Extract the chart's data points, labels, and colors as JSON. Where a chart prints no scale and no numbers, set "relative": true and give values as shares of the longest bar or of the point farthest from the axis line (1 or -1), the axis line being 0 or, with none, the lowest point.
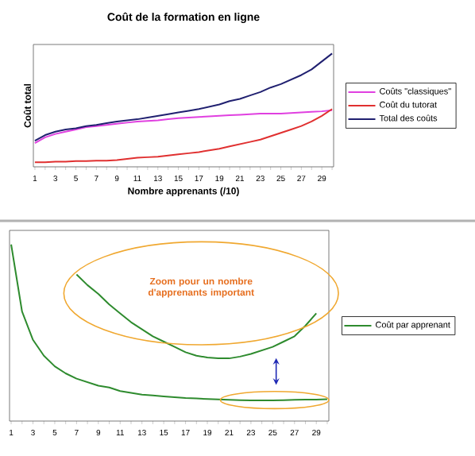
{
  "chart_data": [
    {
      "type": "line",
      "title": "Coût de la formation en ligne",
      "xlabel": "Nombre apprenants (/10)",
      "ylabel": "Coût total",
      "relative": true,
      "tick_labels": "x",
      "legend": "right",
      "grid": false,
      "categories": [
        "1",
        null,
        "3",
        null,
        "5",
        null,
        "7",
        null,
        "9",
        null,
        "11",
        null,
        "13",
        null,
        "15",
        null,
        "17",
        null,
        "19",
        null,
        "21",
        null,
        "23",
        null,
        "25",
        null,
        "27",
        null,
        "29",
        null
      ],
      "series": [
        {
          "name": "Coûts \"classiques\"",
          "color": "#e040e0",
          "values": [
            0.21,
            0.26,
            0.29,
            0.31,
            0.33,
            0.35,
            0.36,
            0.37,
            0.38,
            0.39,
            0.4,
            0.405,
            0.41,
            0.42,
            0.43,
            0.435,
            0.44,
            0.445,
            0.45,
            0.455,
            0.46,
            0.465,
            0.47,
            0.47,
            0.47,
            0.475,
            0.48,
            0.485,
            0.49,
            0.5
          ]
        },
        {
          "name": "Coût du tutorat",
          "color": "#e03030",
          "values": [
            0.04,
            0.04,
            0.045,
            0.045,
            0.05,
            0.05,
            0.055,
            0.055,
            0.06,
            0.07,
            0.08,
            0.085,
            0.09,
            0.1,
            0.11,
            0.12,
            0.13,
            0.145,
            0.16,
            0.18,
            0.2,
            0.22,
            0.24,
            0.27,
            0.3,
            0.33,
            0.36,
            0.4,
            0.45,
            0.51
          ]
        },
        {
          "name": "Total des coûts",
          "color": "#202070",
          "values": [
            0.23,
            0.28,
            0.31,
            0.33,
            0.34,
            0.36,
            0.37,
            0.385,
            0.4,
            0.41,
            0.42,
            0.435,
            0.45,
            0.465,
            0.48,
            0.495,
            0.51,
            0.53,
            0.55,
            0.58,
            0.6,
            0.63,
            0.66,
            0.7,
            0.73,
            0.77,
            0.81,
            0.86,
            0.93,
            1.0
          ]
        }
      ]
    },
    {
      "type": "line",
      "relative": true,
      "tick_labels": "x",
      "legend": "right",
      "grid": false,
      "categories": [
        "1",
        null,
        "3",
        null,
        "5",
        null,
        "7",
        null,
        "9",
        null,
        "11",
        null,
        "13",
        null,
        "15",
        null,
        "17",
        null,
        "19",
        null,
        "21",
        null,
        "23",
        null,
        "25",
        null,
        "27",
        null,
        "29",
        null
      ],
      "annotations": [
        "Zoom pour un nombre d'apprenants important"
      ],
      "series": [
        {
          "name": "Coût par apprenant",
          "color": "#2e8b2e",
          "values": [
            1.0,
            0.62,
            0.46,
            0.37,
            0.31,
            0.27,
            0.24,
            0.22,
            0.2,
            0.19,
            0.17,
            0.16,
            0.15,
            0.145,
            0.14,
            0.135,
            0.13,
            0.128,
            0.125,
            0.123,
            0.12,
            0.118,
            0.117,
            0.117,
            0.117,
            0.118,
            0.12,
            0.121,
            0.122,
            0.124
          ]
        },
        {
          "color": "#2e8b2e",
          "values": [
            null,
            null,
            null,
            null,
            null,
            null,
            0.83,
            0.77,
            0.72,
            0.66,
            0.61,
            0.56,
            0.52,
            0.48,
            0.45,
            0.42,
            0.39,
            0.37,
            0.36,
            0.355,
            0.355,
            0.365,
            0.38,
            0.4,
            0.42,
            0.45,
            0.48,
            0.54,
            0.61,
            null
          ]
        }
      ]
    }
  ]
}
